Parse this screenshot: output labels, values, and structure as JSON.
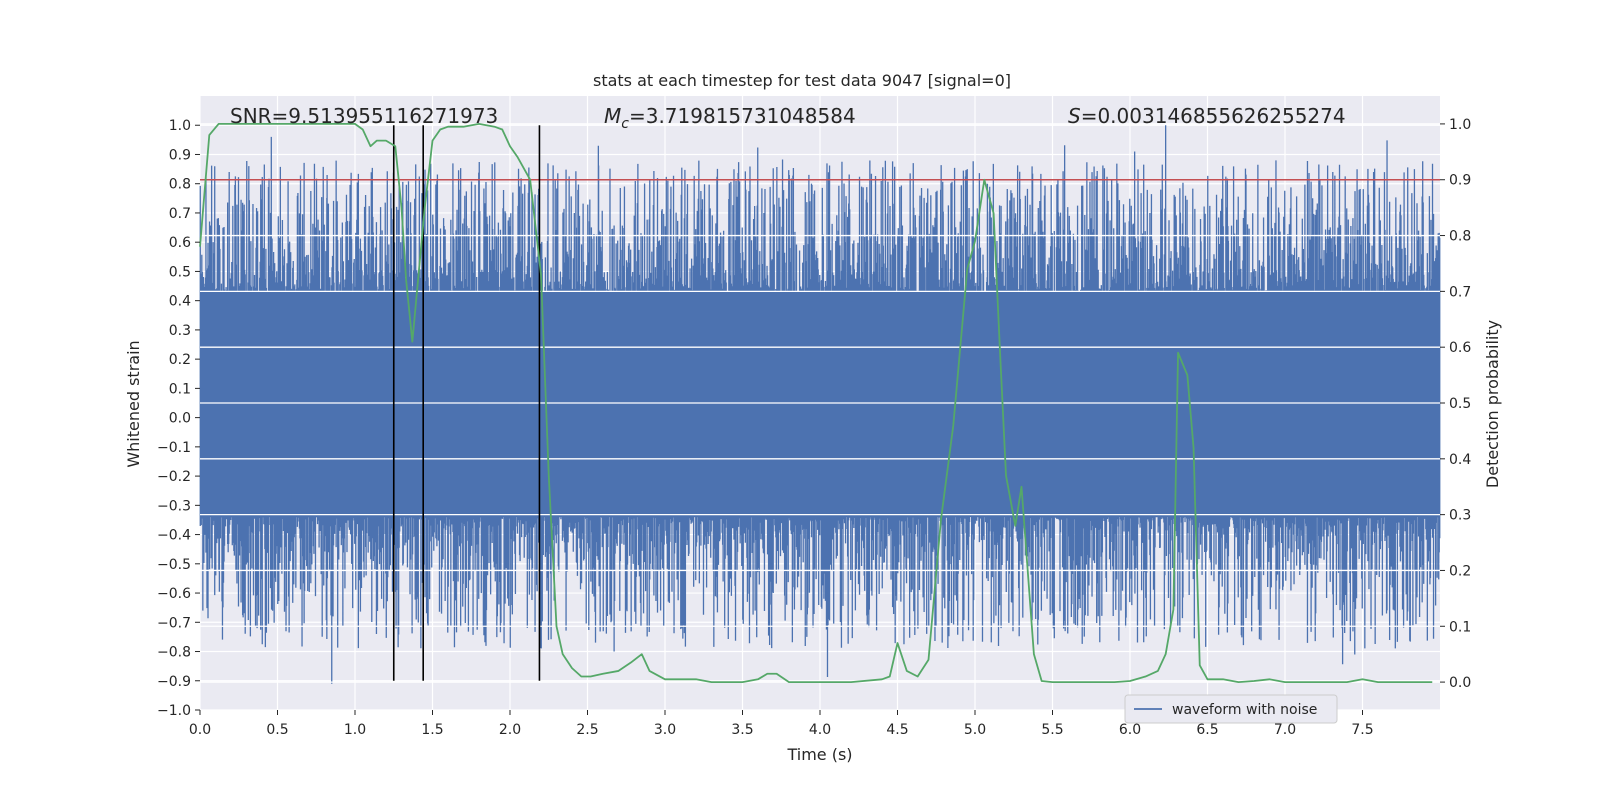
{
  "chart_data": {
    "type": "line",
    "title": "stats at each timestep for test data 9047 [signal=0]",
    "xlabel": "Time (s)",
    "ylabel_left": "Whitened strain",
    "ylabel_right": "Detection probability",
    "xlim": [
      0.0,
      8.0
    ],
    "ylim_left": [
      -1.0,
      1.1
    ],
    "ylim_right": [
      -0.05,
      1.05
    ],
    "x_ticks": [
      "0.0",
      "0.5",
      "1.0",
      "1.5",
      "2.0",
      "2.5",
      "3.0",
      "3.5",
      "4.0",
      "4.5",
      "5.0",
      "5.5",
      "6.0",
      "6.5",
      "7.0",
      "7.5"
    ],
    "y_left_ticks": [
      "−1.0",
      "−0.9",
      "−0.8",
      "−0.7",
      "−0.6",
      "−0.5",
      "−0.4",
      "−0.3",
      "−0.2",
      "−0.1",
      "0.0",
      "0.1",
      "0.2",
      "0.3",
      "0.4",
      "0.5",
      "0.6",
      "0.7",
      "0.8",
      "0.9",
      "1.0"
    ],
    "y_right_ticks": [
      "0.0",
      "0.1",
      "0.2",
      "0.3",
      "0.4",
      "0.5",
      "0.6",
      "0.7",
      "0.8",
      "0.9",
      "1.0"
    ],
    "grid": true,
    "legend_position": "lower-right",
    "annotations": {
      "snr": "SNR=9.513955116271973",
      "mc_symbol": "M",
      "mc_sub": "c",
      "mc_value": "=3.719815731048584",
      "s_symbol": "S",
      "s_value": "=0.003146855626255274"
    },
    "threshold_line": {
      "y_right": 0.9,
      "color": "#c44e52"
    },
    "vertical_lines_x": [
      1.25,
      1.44,
      2.19
    ],
    "vertical_line_range_left": [
      -0.9,
      1.0
    ],
    "series": [
      {
        "name": "waveform with noise",
        "color": "#4c72b0",
        "kind": "noise_strain",
        "x_range": [
          0.0,
          8.0
        ],
        "band_range": [
          -0.34,
          0.43
        ],
        "spike_max": 1.0,
        "spike_min": -0.91,
        "notable_spikes": [
          {
            "x": 0.46,
            "y": 0.96
          },
          {
            "x": 0.82,
            "y": 0.83
          },
          {
            "x": 0.85,
            "y": -0.91
          },
          {
            "x": 2.57,
            "y": 0.93
          },
          {
            "x": 4.95,
            "y": 0.85
          },
          {
            "x": 5.08,
            "y": 0.8
          },
          {
            "x": 6.03,
            "y": 0.91
          },
          {
            "x": 6.23,
            "y": 1.0
          },
          {
            "x": 7.45,
            "y": -0.81
          }
        ]
      },
      {
        "name": "",
        "color": "#55a868",
        "kind": "detection_probability",
        "x": [
          0.0,
          0.06,
          0.12,
          0.2,
          0.3,
          0.4,
          0.5,
          0.6,
          0.7,
          0.8,
          0.9,
          1.0,
          1.05,
          1.1,
          1.14,
          1.2,
          1.26,
          1.3,
          1.33,
          1.37,
          1.4,
          1.45,
          1.5,
          1.55,
          1.6,
          1.7,
          1.8,
          1.9,
          1.95,
          2.0,
          2.05,
          2.13,
          2.2,
          2.25,
          2.3,
          2.34,
          2.4,
          2.46,
          2.52,
          2.6,
          2.7,
          2.78,
          2.85,
          2.9,
          3.0,
          3.1,
          3.2,
          3.3,
          3.5,
          3.6,
          3.66,
          3.72,
          3.8,
          3.9,
          4.0,
          4.2,
          4.4,
          4.45,
          4.5,
          4.56,
          4.63,
          4.7,
          4.78,
          4.86,
          4.95,
          5.0,
          5.06,
          5.12,
          5.16,
          5.2,
          5.26,
          5.3,
          5.38,
          5.43,
          5.5,
          5.7,
          5.9,
          6.0,
          6.1,
          6.18,
          6.23,
          6.28,
          6.31,
          6.37,
          6.41,
          6.45,
          6.5,
          6.6,
          6.7,
          6.8,
          6.9,
          7.0,
          7.1,
          7.2,
          7.3,
          7.4,
          7.5,
          7.6,
          7.7,
          7.8,
          7.85,
          7.95
        ],
        "y": [
          0.78,
          0.98,
          1.0,
          1.0,
          1.0,
          1.0,
          1.0,
          1.0,
          1.0,
          1.0,
          1.0,
          1.0,
          0.99,
          0.96,
          0.97,
          0.97,
          0.96,
          0.85,
          0.72,
          0.61,
          0.7,
          0.85,
          0.97,
          0.99,
          0.995,
          0.995,
          1.0,
          0.995,
          0.99,
          0.96,
          0.94,
          0.9,
          0.73,
          0.37,
          0.1,
          0.05,
          0.025,
          0.01,
          0.01,
          0.015,
          0.02,
          0.035,
          0.05,
          0.02,
          0.005,
          0.005,
          0.005,
          0.0,
          0.0,
          0.005,
          0.015,
          0.015,
          0.0,
          0.0,
          0.0,
          0.0,
          0.005,
          0.01,
          0.07,
          0.02,
          0.01,
          0.04,
          0.29,
          0.46,
          0.74,
          0.79,
          0.9,
          0.84,
          0.6,
          0.37,
          0.28,
          0.35,
          0.05,
          0.002,
          0.0,
          0.0,
          0.0,
          0.002,
          0.01,
          0.02,
          0.05,
          0.13,
          0.59,
          0.55,
          0.42,
          0.03,
          0.005,
          0.005,
          0.0,
          0.002,
          0.005,
          0.0,
          0.0,
          0.0,
          0.0,
          0.0,
          0.005,
          0.0,
          0.0,
          0.0,
          0.0,
          0.0
        ]
      }
    ]
  }
}
